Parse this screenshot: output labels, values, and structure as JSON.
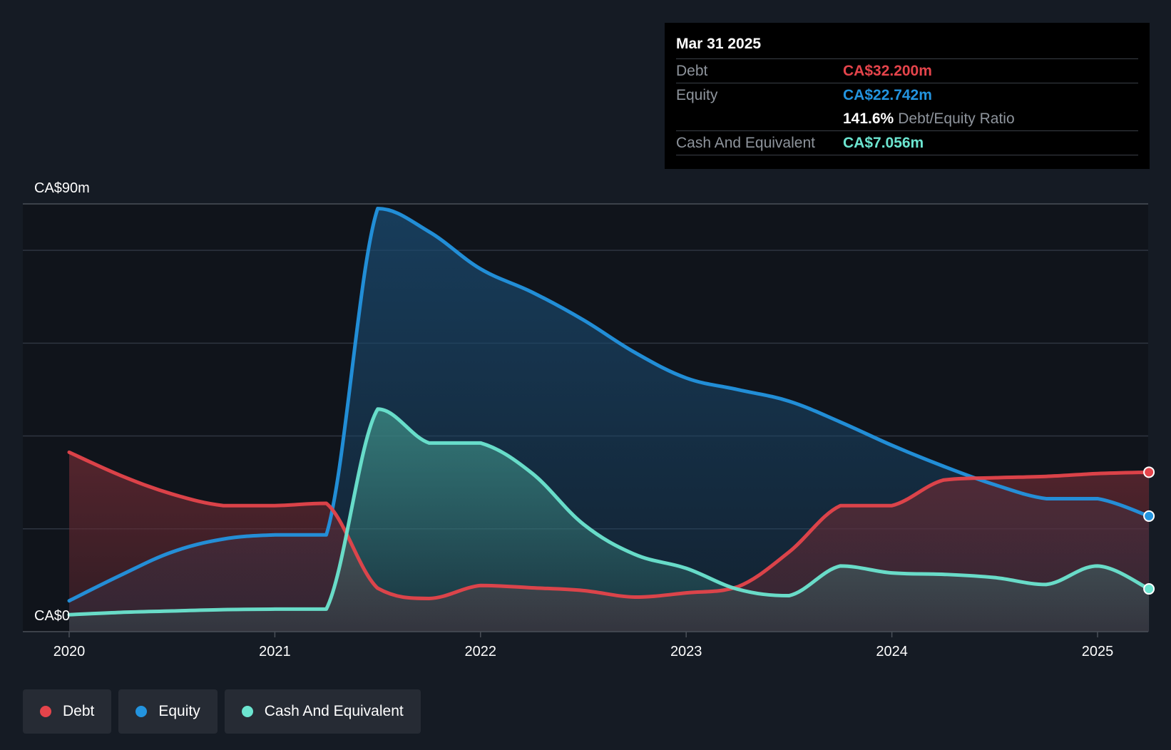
{
  "colors": {
    "debt": "#e5444b",
    "equity": "#2394df",
    "cash": "#6ce5d0",
    "grid": "#2e3540",
    "plot_bg": "#10141b"
  },
  "tooltip": {
    "date": "Mar 31 2025",
    "debt_label": "Debt",
    "debt_value": "CA$32.200m",
    "equity_label": "Equity",
    "equity_value": "CA$22.742m",
    "ratio_value": "141.6%",
    "ratio_label": "Debt/Equity Ratio",
    "cash_label": "Cash And Equivalent",
    "cash_value": "CA$7.056m"
  },
  "legend": {
    "debt": "Debt",
    "equity": "Equity",
    "cash": "Cash And Equivalent"
  },
  "chart_data": {
    "type": "area",
    "title": "",
    "xlabel": "",
    "ylabel": "",
    "x_ticks": [
      "2020",
      "2021",
      "2022",
      "2023",
      "2024",
      "2025"
    ],
    "xlim": [
      2020.0,
      2025.25
    ],
    "ylim": [
      0,
      90
    ],
    "y_tick_labels": {
      "top": "CA$90m",
      "bottom": "CA$0"
    },
    "grid": true,
    "series": [
      {
        "name": "Debt",
        "key": "debt",
        "points": [
          [
            2020.0,
            36.5
          ],
          [
            2020.25,
            31.5
          ],
          [
            2020.5,
            27.5
          ],
          [
            2020.75,
            25.0
          ],
          [
            2021.0,
            25.0
          ],
          [
            2021.25,
            25.5
          ],
          [
            2021.5,
            7.2
          ],
          [
            2021.75,
            5.0
          ],
          [
            2022.0,
            7.8
          ],
          [
            2022.25,
            7.3
          ],
          [
            2022.5,
            6.7
          ],
          [
            2022.75,
            5.3
          ],
          [
            2023.0,
            6.2
          ],
          [
            2023.25,
            7.5
          ],
          [
            2023.5,
            15.0
          ],
          [
            2023.75,
            25.0
          ],
          [
            2024.0,
            25.0
          ],
          [
            2024.25,
            30.5
          ],
          [
            2024.5,
            31.0
          ],
          [
            2024.75,
            31.3
          ],
          [
            2025.0,
            31.9
          ],
          [
            2025.25,
            32.2
          ]
        ]
      },
      {
        "name": "Equity",
        "key": "equity",
        "points": [
          [
            2020.0,
            4.5
          ],
          [
            2020.25,
            10.0
          ],
          [
            2020.5,
            15.0
          ],
          [
            2020.75,
            17.8
          ],
          [
            2021.0,
            18.7
          ],
          [
            2021.25,
            18.7
          ],
          [
            2021.5,
            89.0
          ],
          [
            2021.75,
            84.0
          ],
          [
            2022.0,
            76.0
          ],
          [
            2022.25,
            71.0
          ],
          [
            2022.5,
            65.0
          ],
          [
            2022.75,
            58.0
          ],
          [
            2023.0,
            52.5
          ],
          [
            2023.25,
            50.0
          ],
          [
            2023.5,
            47.5
          ],
          [
            2023.75,
            43.0
          ],
          [
            2024.0,
            38.0
          ],
          [
            2024.25,
            33.5
          ],
          [
            2024.5,
            29.5
          ],
          [
            2024.75,
            26.5
          ],
          [
            2025.0,
            26.5
          ],
          [
            2025.25,
            22.742
          ]
        ]
      },
      {
        "name": "Cash And Equivalent",
        "key": "cash",
        "points": [
          [
            2020.0,
            1.5
          ],
          [
            2020.25,
            2.0
          ],
          [
            2020.5,
            2.3
          ],
          [
            2020.75,
            2.6
          ],
          [
            2021.0,
            2.7
          ],
          [
            2021.25,
            2.7
          ],
          [
            2021.5,
            45.8
          ],
          [
            2021.75,
            38.5
          ],
          [
            2022.0,
            38.5
          ],
          [
            2022.25,
            32.0
          ],
          [
            2022.5,
            21.0
          ],
          [
            2022.75,
            14.5
          ],
          [
            2023.0,
            11.5
          ],
          [
            2023.25,
            7.0
          ],
          [
            2023.5,
            5.6
          ],
          [
            2023.75,
            12.0
          ],
          [
            2024.0,
            10.5
          ],
          [
            2024.25,
            10.2
          ],
          [
            2024.5,
            9.5
          ],
          [
            2024.75,
            8.0
          ],
          [
            2025.0,
            12.0
          ],
          [
            2025.25,
            7.056
          ]
        ]
      }
    ]
  }
}
